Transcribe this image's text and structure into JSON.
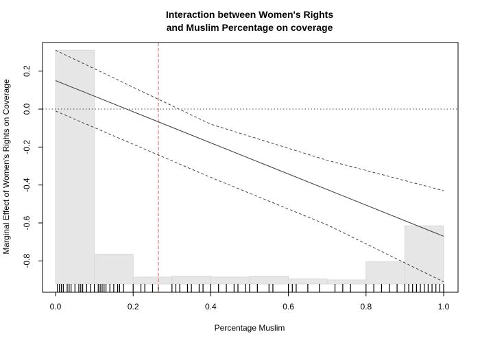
{
  "chart_data": {
    "type": "line",
    "title_line1": "Interaction between Women's Rights",
    "title_line2": "and Muslim Percentage on coverage",
    "xlabel": "Percentage Muslim",
    "ylabel": "Marginal Effect of Women's Rights on Coverage",
    "xlim": [
      0.0,
      1.0
    ],
    "ylim": [
      -0.95,
      0.34
    ],
    "x_ticks": [
      0.0,
      0.2,
      0.4,
      0.6,
      0.8,
      1.0
    ],
    "x_tick_labels": [
      "0.0",
      "0.2",
      "0.4",
      "0.6",
      "0.8",
      "1.0"
    ],
    "y_ticks": [
      -0.8,
      -0.6,
      -0.4,
      -0.2,
      0.0,
      0.2
    ],
    "y_tick_labels": [
      "-0.8",
      "-0.6",
      "-0.4",
      "-0.2",
      "0.0",
      "0.2"
    ],
    "marginal_effect": {
      "x": [
        0.0,
        1.0
      ],
      "y": [
        0.15,
        -0.67
      ]
    },
    "ci_upper": {
      "x": [
        0.0,
        0.4,
        0.7,
        1.0
      ],
      "y": [
        0.31,
        -0.08,
        -0.27,
        -0.43
      ]
    },
    "ci_lower": {
      "x": [
        0.0,
        0.4,
        0.7,
        1.0
      ],
      "y": [
        -0.01,
        -0.36,
        -0.61,
        -0.91
      ]
    },
    "zero_line": 0.0,
    "reference_line_x": 0.265,
    "histogram": {
      "bin_edges": [
        0.0,
        0.1,
        0.2,
        0.3,
        0.4,
        0.5,
        0.6,
        0.7,
        0.8,
        0.9,
        1.0
      ],
      "bar_tops": [
        0.31,
        -0.765,
        -0.885,
        -0.88,
        -0.885,
        -0.88,
        -0.895,
        -0.9,
        -0.805,
        -0.615
      ]
    },
    "rug": [
      0.005,
      0.01,
      0.015,
      0.02,
      0.03,
      0.035,
      0.04,
      0.05,
      0.06,
      0.065,
      0.07,
      0.08,
      0.09,
      0.1,
      0.11,
      0.115,
      0.12,
      0.125,
      0.13,
      0.14,
      0.15,
      0.16,
      0.165,
      0.175,
      0.2,
      0.22,
      0.23,
      0.25,
      0.265,
      0.3,
      0.31,
      0.32,
      0.34,
      0.35,
      0.37,
      0.38,
      0.4,
      0.42,
      0.44,
      0.46,
      0.47,
      0.49,
      0.5,
      0.52,
      0.55,
      0.56,
      0.6,
      0.61,
      0.62,
      0.65,
      0.68,
      0.72,
      0.74,
      0.76,
      0.8,
      0.82,
      0.84,
      0.86,
      0.88,
      0.9,
      0.91,
      0.92,
      0.93,
      0.94,
      0.95,
      0.96,
      0.97,
      0.98,
      0.99,
      1.0
    ],
    "colors": {
      "histogram_fill": "#e6e6e6",
      "histogram_stroke": "#d9d9d9",
      "effect_line": "#444444",
      "ci_line": "#444444",
      "zero_line": "#444444",
      "reference_line": "#e0787c",
      "axis": "#000000"
    }
  }
}
